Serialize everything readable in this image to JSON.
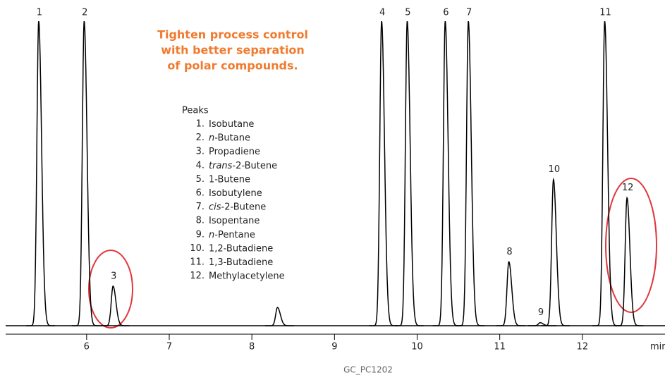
{
  "chart_data": {
    "type": "chromatogram",
    "annotation": [
      "Tighten process control",
      "with better separation",
      "of polar compounds."
    ],
    "legend_title": "Peaks",
    "legend": [
      {
        "number": "1.",
        "name": [
          {
            "text": "Isobutane"
          }
        ]
      },
      {
        "number": "2.",
        "name": [
          {
            "text": "n",
            "italic": true
          },
          {
            "text": "-Butane"
          }
        ]
      },
      {
        "number": "3.",
        "name": [
          {
            "text": "Propadiene"
          }
        ]
      },
      {
        "number": "4.",
        "name": [
          {
            "text": "trans",
            "italic": true
          },
          {
            "text": "-2-Butene"
          }
        ]
      },
      {
        "number": "5.",
        "name": [
          {
            "text": "1-Butene"
          }
        ]
      },
      {
        "number": "6.",
        "name": [
          {
            "text": "Isobutylene"
          }
        ]
      },
      {
        "number": "7.",
        "name": [
          {
            "text": "cis",
            "italic": true
          },
          {
            "text": "-2-Butene"
          }
        ]
      },
      {
        "number": "8.",
        "name": [
          {
            "text": "Isopentane"
          }
        ]
      },
      {
        "number": "9.",
        "name": [
          {
            "text": "n",
            "italic": true
          },
          {
            "text": "-Pentane"
          }
        ]
      },
      {
        "number": "10.",
        "name": [
          {
            "text": "1,2-Butadiene"
          }
        ]
      },
      {
        "number": "11.",
        "name": [
          {
            "text": "1,3-Butadiene"
          }
        ]
      },
      {
        "number": "12.",
        "name": [
          {
            "text": "Methylacetylene"
          }
        ]
      }
    ],
    "peaks": {
      "labels": [
        "1",
        "2",
        "3",
        null,
        "4",
        "5",
        "6",
        "7",
        "8",
        "9",
        "10",
        "11",
        "12"
      ],
      "x": [
        5.42,
        5.97,
        6.32,
        8.31,
        9.57,
        9.88,
        10.34,
        10.62,
        11.11,
        11.49,
        11.65,
        12.27,
        12.54
      ],
      "values": [
        100,
        100,
        13,
        6,
        100,
        100,
        100,
        100,
        21,
        1,
        48,
        100,
        42
      ]
    },
    "color": "#000000",
    "xlim": [
      5.02,
      13.0
    ],
    "xticks": [
      6,
      7,
      8,
      9,
      10,
      11,
      12
    ],
    "ylim": [
      0,
      100
    ],
    "xlabel": "min",
    "footer": "GC_PC1202"
  }
}
